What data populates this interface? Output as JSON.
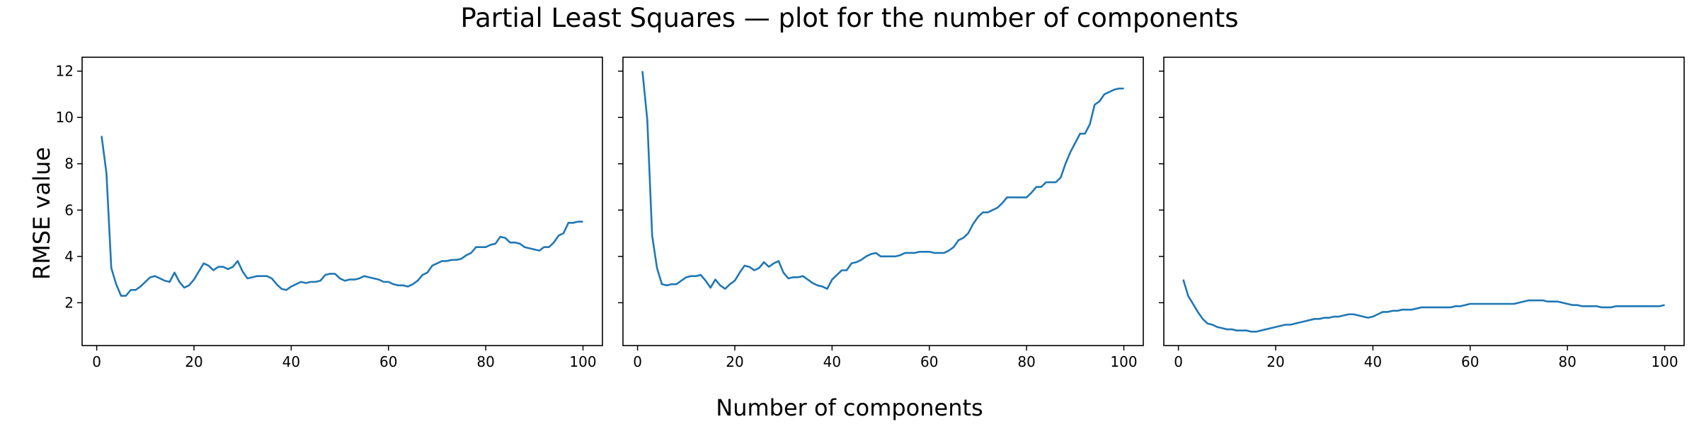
{
  "figure": {
    "title": "Partial Least Squares — plot for the number of components",
    "xlabel": "Number of components",
    "ylabel": "RMSE value"
  },
  "style": {
    "line_color": "#1f77b4"
  },
  "chart_data": [
    {
      "type": "line",
      "xlim": [
        -3,
        104
      ],
      "ylim": [
        0.15,
        12.6
      ],
      "xticks": [
        0,
        20,
        40,
        60,
        80,
        100
      ],
      "yticks": [
        2,
        4,
        6,
        8,
        10,
        12
      ],
      "x": [
        1,
        2,
        3,
        4,
        5,
        6,
        7,
        8,
        9,
        10,
        11,
        12,
        13,
        14,
        15,
        16,
        17,
        18,
        19,
        20,
        21,
        22,
        23,
        24,
        25,
        26,
        27,
        28,
        29,
        30,
        31,
        32,
        33,
        34,
        35,
        36,
        37,
        38,
        39,
        40,
        41,
        42,
        43,
        44,
        45,
        46,
        47,
        48,
        49,
        50,
        51,
        52,
        53,
        54,
        55,
        56,
        57,
        58,
        59,
        60,
        61,
        62,
        63,
        64,
        65,
        66,
        67,
        68,
        69,
        70,
        71,
        72,
        73,
        74,
        75,
        76,
        77,
        78,
        79,
        80,
        81,
        82,
        83,
        84,
        85,
        86,
        87,
        88,
        89,
        90,
        91,
        92,
        93,
        94,
        95,
        96,
        97,
        98,
        99,
        100
      ],
      "series": [
        {
          "values": [
            9.2,
            7.6,
            3.5,
            2.8,
            2.3,
            2.3,
            2.55,
            2.55,
            2.7,
            2.9,
            3.1,
            3.15,
            3.05,
            2.95,
            2.9,
            3.3,
            2.9,
            2.65,
            2.75,
            3.0,
            3.35,
            3.7,
            3.6,
            3.4,
            3.55,
            3.55,
            3.45,
            3.55,
            3.8,
            3.35,
            3.05,
            3.1,
            3.15,
            3.15,
            3.15,
            3.05,
            2.8,
            2.6,
            2.55,
            2.7,
            2.8,
            2.9,
            2.85,
            2.9,
            2.9,
            2.95,
            3.2,
            3.25,
            3.25,
            3.05,
            2.95,
            3.0,
            3.0,
            3.05,
            3.15,
            3.1,
            3.05,
            3.0,
            2.9,
            2.9,
            2.8,
            2.75,
            2.75,
            2.7,
            2.8,
            2.95,
            3.2,
            3.3,
            3.6,
            3.7,
            3.8,
            3.8,
            3.85,
            3.85,
            3.9,
            4.05,
            4.15,
            4.4,
            4.4,
            4.4,
            4.5,
            4.55,
            4.85,
            4.8,
            4.6,
            4.6,
            4.55,
            4.4,
            4.35,
            4.3,
            4.25,
            4.4,
            4.4,
            4.6,
            4.9,
            5.0,
            5.45,
            5.45,
            5.5,
            5.5
          ]
        }
      ]
    },
    {
      "type": "line",
      "xlim": [
        -3,
        104
      ],
      "ylim": [
        0.15,
        12.6
      ],
      "xticks": [
        0,
        20,
        40,
        60,
        80,
        100
      ],
      "yticks": [
        2,
        4,
        6,
        8,
        10,
        12
      ],
      "x": [
        1,
        2,
        3,
        4,
        5,
        6,
        7,
        8,
        9,
        10,
        11,
        12,
        13,
        14,
        15,
        16,
        17,
        18,
        19,
        20,
        21,
        22,
        23,
        24,
        25,
        26,
        27,
        28,
        29,
        30,
        31,
        32,
        33,
        34,
        35,
        36,
        37,
        38,
        39,
        40,
        41,
        42,
        43,
        44,
        45,
        46,
        47,
        48,
        49,
        50,
        51,
        52,
        53,
        54,
        55,
        56,
        57,
        58,
        59,
        60,
        61,
        62,
        63,
        64,
        65,
        66,
        67,
        68,
        69,
        70,
        71,
        72,
        73,
        74,
        75,
        76,
        77,
        78,
        79,
        80,
        81,
        82,
        83,
        84,
        85,
        86,
        87,
        88,
        89,
        90,
        91,
        92,
        93,
        94,
        95,
        96,
        97,
        98,
        99,
        100
      ],
      "series": [
        {
          "values": [
            12.0,
            9.9,
            4.9,
            3.5,
            2.8,
            2.75,
            2.8,
            2.8,
            2.95,
            3.1,
            3.15,
            3.15,
            3.2,
            2.95,
            2.65,
            3.0,
            2.75,
            2.6,
            2.8,
            2.95,
            3.3,
            3.6,
            3.55,
            3.4,
            3.5,
            3.75,
            3.55,
            3.7,
            3.8,
            3.3,
            3.05,
            3.1,
            3.1,
            3.15,
            3.0,
            2.85,
            2.75,
            2.7,
            2.6,
            3.0,
            3.2,
            3.4,
            3.4,
            3.7,
            3.75,
            3.85,
            4.0,
            4.1,
            4.15,
            4.0,
            4.0,
            4.0,
            4.0,
            4.05,
            4.15,
            4.15,
            4.15,
            4.2,
            4.2,
            4.2,
            4.15,
            4.15,
            4.15,
            4.25,
            4.4,
            4.7,
            4.8,
            5.0,
            5.4,
            5.7,
            5.9,
            5.9,
            6.0,
            6.1,
            6.3,
            6.55,
            6.55,
            6.55,
            6.55,
            6.55,
            6.75,
            7.0,
            7.0,
            7.2,
            7.2,
            7.2,
            7.4,
            8.0,
            8.5,
            8.9,
            9.3,
            9.3,
            9.7,
            10.55,
            10.7,
            11.0,
            11.1,
            11.2,
            11.25,
            11.25
          ]
        }
      ]
    },
    {
      "type": "line",
      "xlim": [
        -3,
        104
      ],
      "ylim": [
        0.15,
        12.6
      ],
      "xticks": [
        0,
        20,
        40,
        60,
        80,
        100
      ],
      "yticks": [
        2,
        4,
        6,
        8,
        10,
        12
      ],
      "x": [
        1,
        2,
        3,
        4,
        5,
        6,
        7,
        8,
        9,
        10,
        11,
        12,
        13,
        14,
        15,
        16,
        17,
        18,
        19,
        20,
        21,
        22,
        23,
        24,
        25,
        26,
        27,
        28,
        29,
        30,
        31,
        32,
        33,
        34,
        35,
        36,
        37,
        38,
        39,
        40,
        41,
        42,
        43,
        44,
        45,
        46,
        47,
        48,
        49,
        50,
        51,
        52,
        53,
        54,
        55,
        56,
        57,
        58,
        59,
        60,
        61,
        62,
        63,
        64,
        65,
        66,
        67,
        68,
        69,
        70,
        71,
        72,
        73,
        74,
        75,
        76,
        77,
        78,
        79,
        80,
        81,
        82,
        83,
        84,
        85,
        86,
        87,
        88,
        89,
        90,
        91,
        92,
        93,
        94,
        95,
        96,
        97,
        98,
        99,
        100
      ],
      "series": [
        {
          "values": [
            3.0,
            2.3,
            1.95,
            1.6,
            1.3,
            1.1,
            1.05,
            0.95,
            0.9,
            0.85,
            0.85,
            0.8,
            0.8,
            0.8,
            0.75,
            0.75,
            0.8,
            0.85,
            0.9,
            0.95,
            1.0,
            1.05,
            1.05,
            1.1,
            1.15,
            1.2,
            1.25,
            1.3,
            1.3,
            1.35,
            1.35,
            1.4,
            1.4,
            1.45,
            1.5,
            1.5,
            1.45,
            1.4,
            1.35,
            1.4,
            1.5,
            1.6,
            1.6,
            1.65,
            1.65,
            1.7,
            1.7,
            1.7,
            1.75,
            1.8,
            1.8,
            1.8,
            1.8,
            1.8,
            1.8,
            1.8,
            1.85,
            1.85,
            1.9,
            1.95,
            1.95,
            1.95,
            1.95,
            1.95,
            1.95,
            1.95,
            1.95,
            1.95,
            1.95,
            2.0,
            2.05,
            2.1,
            2.1,
            2.1,
            2.1,
            2.05,
            2.05,
            2.05,
            2.0,
            1.95,
            1.9,
            1.9,
            1.85,
            1.85,
            1.85,
            1.85,
            1.8,
            1.8,
            1.8,
            1.85,
            1.85,
            1.85,
            1.85,
            1.85,
            1.85,
            1.85,
            1.85,
            1.85,
            1.85,
            1.9
          ]
        }
      ]
    }
  ]
}
